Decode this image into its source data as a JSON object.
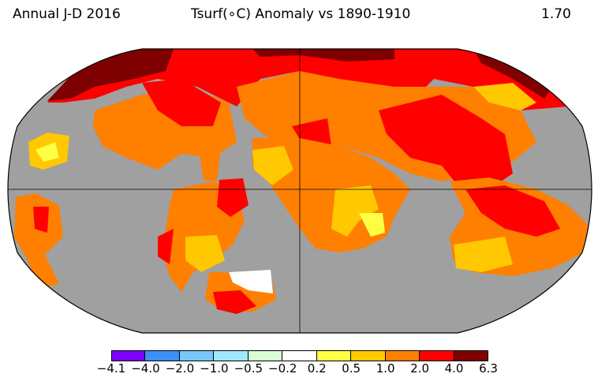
{
  "header": {
    "left": "Annual J-D 2016",
    "center": "Tsurf(∘C) Anomaly vs 1890-1910",
    "right": "1.70"
  },
  "colorbar": {
    "bins": [
      {
        "color": "#8000ff"
      },
      {
        "color": "#3b8ff5"
      },
      {
        "color": "#78c8f8"
      },
      {
        "color": "#a0e8ff"
      },
      {
        "color": "#d8fcd4"
      },
      {
        "color": "#ffffff"
      },
      {
        "color": "#ffff44"
      },
      {
        "color": "#ffc800"
      },
      {
        "color": "#ff7f00"
      },
      {
        "color": "#ff0000"
      },
      {
        "color": "#7f0000"
      }
    ],
    "ticks": [
      "−4.1",
      "−4.0",
      "−2.0",
      "−1.0",
      "−0.5",
      "−0.2",
      "0.2",
      "0.5",
      "1.0",
      "2.0",
      "4.0",
      "6.3"
    ]
  },
  "map": {
    "missing_color": "#a0a0a0",
    "colors": {
      "orange": "#ff7f00",
      "red": "#ff0000",
      "darkred": "#7f0000",
      "gold": "#ffc800",
      "yellow": "#ffff44",
      "white": "#ffffff"
    }
  }
}
